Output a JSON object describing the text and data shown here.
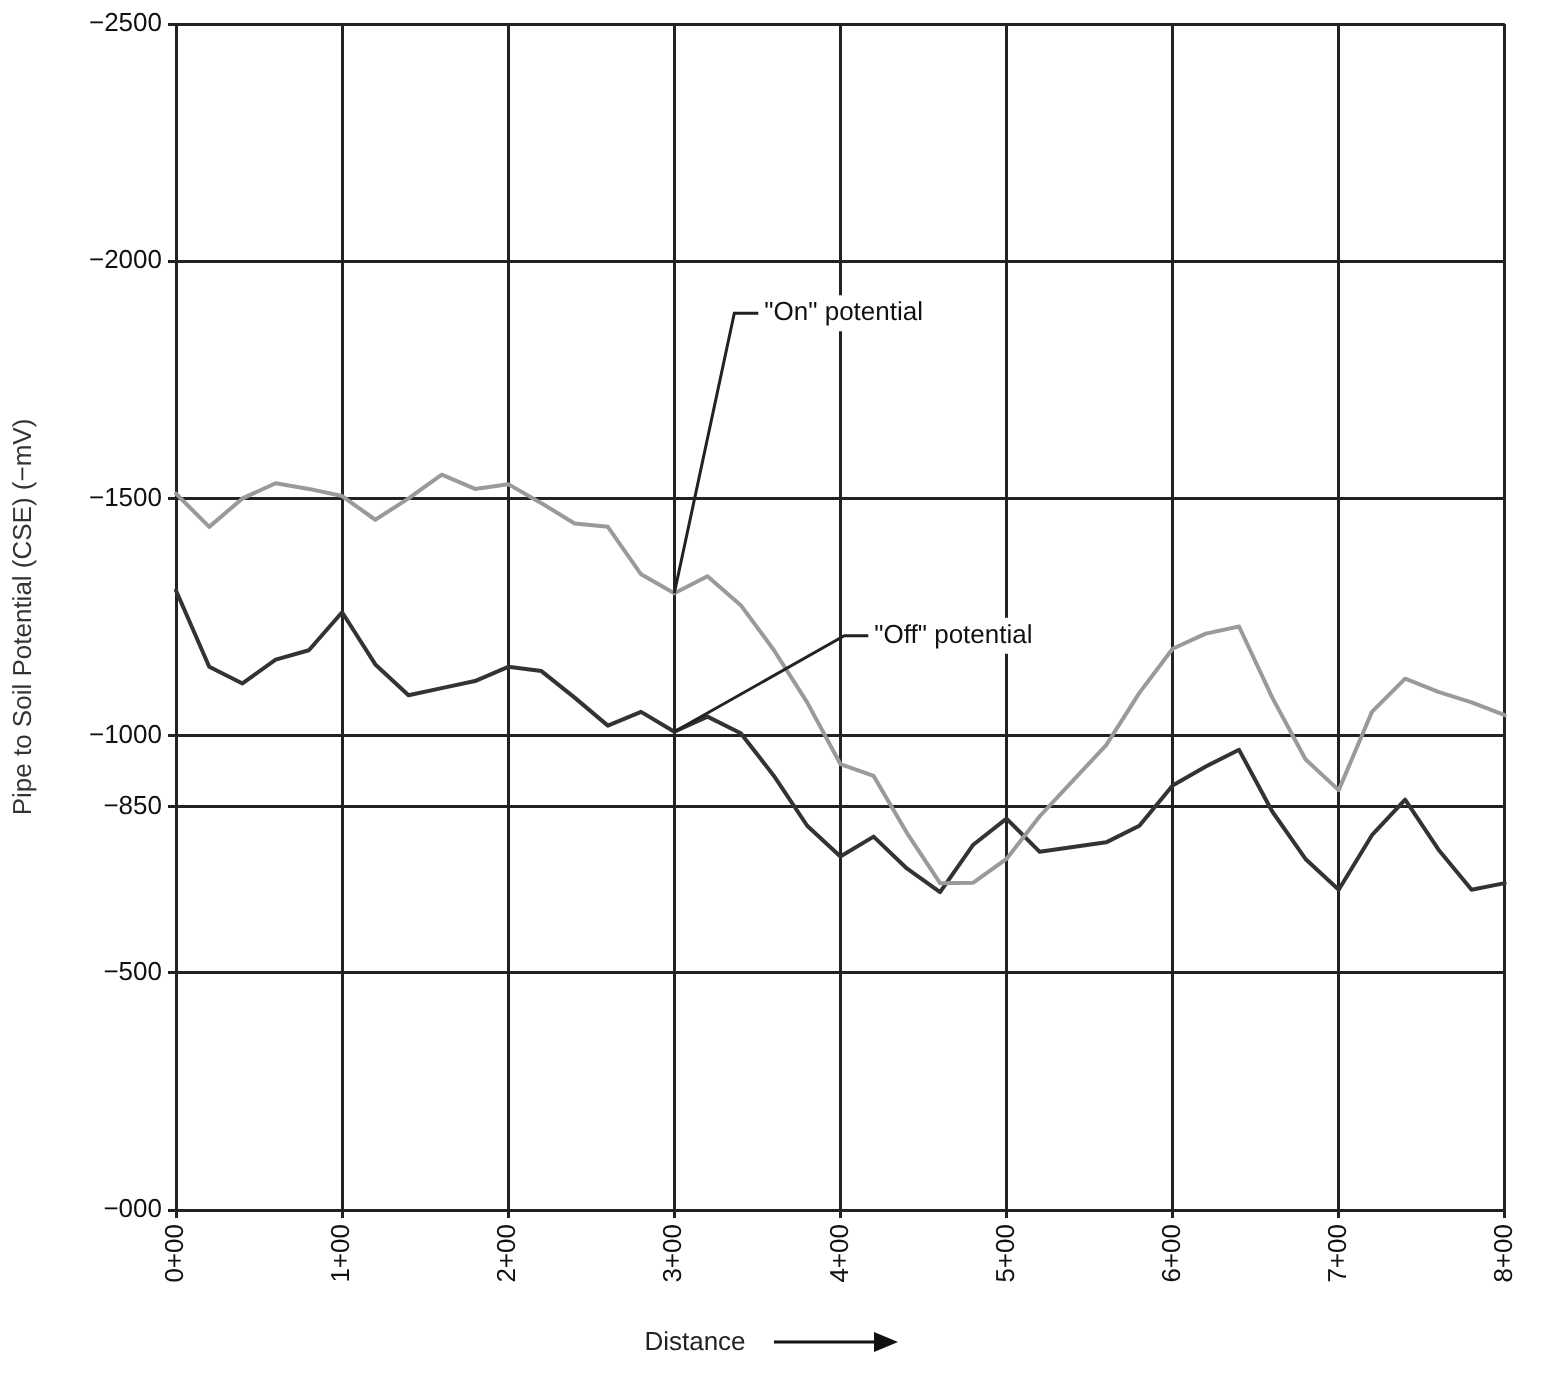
{
  "chart_data": {
    "type": "line",
    "xlabel": "Distance",
    "ylabel": "Pipe to Soil Potential (CSE) (−mV)",
    "categories": [
      "0+00",
      null,
      null,
      null,
      null,
      "1+00",
      null,
      null,
      null,
      null,
      "2+00",
      null,
      null,
      null,
      null,
      "3+00",
      null,
      null,
      null,
      null,
      "4+00",
      null,
      null,
      null,
      null,
      "5+00",
      null,
      null,
      null,
      null,
      "6+00",
      null,
      null,
      null,
      null,
      "7+00",
      null,
      null,
      null,
      null,
      "8+00"
    ],
    "ylim": [
      0,
      -2500
    ],
    "yticks": [
      {
        "value": 0,
        "label": "−000"
      },
      {
        "value": -500,
        "label": "−500"
      },
      {
        "value": -850,
        "label": "−850"
      },
      {
        "value": -1000,
        "label": "−1000"
      },
      {
        "value": -1500,
        "label": "−1500"
      },
      {
        "value": -2000,
        "label": "−2000"
      },
      {
        "value": -2500,
        "label": "−2500"
      }
    ],
    "grid": true,
    "legend": false,
    "marker": "none",
    "line_style": "solid",
    "series": [
      {
        "color": "#9a9a9a",
        "values": [
          -1510,
          -1440,
          -1500,
          -1532,
          -1520,
          -1505,
          -1455,
          -1500,
          -1550,
          -1520,
          -1530,
          -1490,
          -1447,
          -1440,
          -1340,
          -1300,
          -1336,
          -1275,
          -1180,
          -1070,
          -940,
          -915,
          -795,
          -689,
          -690,
          -740,
          -830,
          -905,
          -980,
          -1090,
          -1183,
          -1215,
          -1230,
          -1080,
          -950,
          -885,
          -1050,
          -1120,
          -1092,
          -1070,
          -1043
        ]
      },
      {
        "color": "#333333",
        "values": [
          -1306,
          -1145,
          -1110,
          -1160,
          -1180,
          -1260,
          -1150,
          -1085,
          -1100,
          -1115,
          -1145,
          -1136,
          -1080,
          -1021,
          -1050,
          -1008,
          -1040,
          -1005,
          -915,
          -810,
          -745,
          -787,
          -720,
          -670,
          -770,
          -825,
          -755,
          -765,
          -775,
          -810,
          -895,
          -935,
          -970,
          -840,
          -740,
          -675,
          -790,
          -865,
          -760,
          -675,
          -689
        ]
      }
    ],
    "annotations": [
      {
        "text": "\"On\" potential",
        "x": "3+00",
        "y": -1300
      },
      {
        "text": "\"Off\" potential",
        "x": "3+00",
        "y": -1008
      }
    ]
  }
}
